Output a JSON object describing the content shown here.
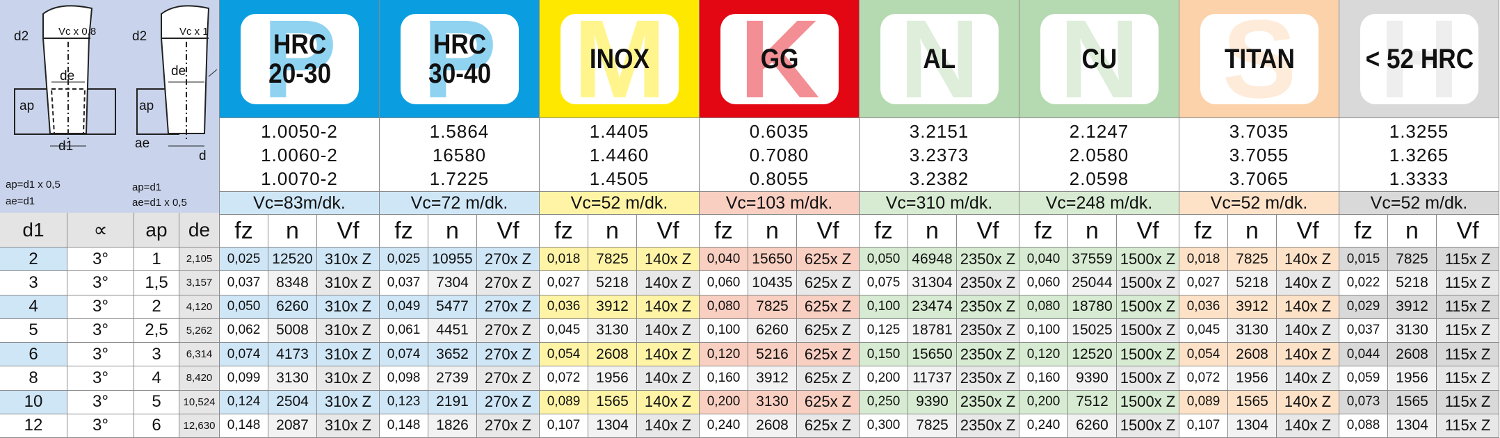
{
  "diagram_left": {
    "d2": "d2",
    "vc": "Vc x 0,8",
    "de": "de",
    "ap": "ap",
    "d1": "d1",
    "formula_ap": "ap=d1 x 0,5",
    "formula_ae": "ae=d1"
  },
  "diagram_right": {
    "d2": "d2",
    "vc": "Vc x 1",
    "de": "de",
    "ap": "ap",
    "ae": "ae",
    "d": "d",
    "formula_ap": "ap=d1",
    "formula_ae": "ae=d1 x 0,5"
  },
  "left_table": {
    "headers": [
      "d1",
      "∝",
      "ap",
      "de"
    ],
    "rows": [
      [
        "2",
        "3°",
        "1",
        "2,105"
      ],
      [
        "3",
        "3°",
        "1,5",
        "3,157"
      ],
      [
        "4",
        "3°",
        "2",
        "4,120"
      ],
      [
        "5",
        "3°",
        "2,5",
        "5,262"
      ],
      [
        "6",
        "3°",
        "3",
        "6,314"
      ],
      [
        "8",
        "3°",
        "4",
        "8,420"
      ],
      [
        "10",
        "3°",
        "5",
        "10,524"
      ],
      [
        "12",
        "3°",
        "6",
        "12,630"
      ]
    ]
  },
  "columns": [
    "fz",
    "n",
    "Vf"
  ],
  "materials": [
    {
      "letter": "P",
      "label": [
        "HRC",
        "20-30"
      ],
      "color": "#0a9ee0",
      "tint": "#cfe6f7",
      "numbers": [
        "1.0050-2",
        "1.0060-2",
        "1.0070-2"
      ],
      "vc": "Vc=83m/dk.",
      "vf": "310x Z",
      "fz": [
        "0,025",
        "0,037",
        "0,050",
        "0,062",
        "0,074",
        "0,099",
        "0,124",
        "0,148"
      ],
      "n": [
        "12520",
        "8348",
        "6260",
        "5008",
        "4173",
        "3130",
        "2504",
        "2087"
      ]
    },
    {
      "letter": "P",
      "label": [
        "HRC",
        "30-40"
      ],
      "color": "#0a9ee0",
      "tint": "#cfe6f7",
      "numbers": [
        "1.5864",
        "16580",
        "1.7225"
      ],
      "vc": "Vc=72 m/dk.",
      "vf": "270x Z",
      "fz": [
        "0,025",
        "0,037",
        "0,049",
        "0,061",
        "0,074",
        "0,098",
        "0,123",
        "0,148"
      ],
      "n": [
        "10955",
        "7304",
        "5477",
        "4451",
        "3652",
        "2739",
        "2191",
        "1826"
      ]
    },
    {
      "letter": "M",
      "label": [
        "INOX"
      ],
      "color": "#ffe800",
      "tint": "#fff4a6",
      "numbers": [
        "1.4405",
        "1.4460",
        "1.4505"
      ],
      "vc": "Vc=52 m/dk.",
      "vf": "140x Z",
      "fz": [
        "0,018",
        "0,027",
        "0,036",
        "0,045",
        "0,054",
        "0,072",
        "0,089",
        "0,107"
      ],
      "n": [
        "7825",
        "5218",
        "3912",
        "3130",
        "2608",
        "1956",
        "1565",
        "1304"
      ]
    },
    {
      "letter": "K",
      "label": [
        "GG"
      ],
      "color": "#e30613",
      "tint": "#f9cfc2",
      "numbers": [
        "0.6035",
        "0.7080",
        "0.8055"
      ],
      "vc": "Vc=103 m/dk.",
      "vf": "625x Z",
      "fz": [
        "0,040",
        "0,060",
        "0,080",
        "0,100",
        "0,120",
        "0,160",
        "0,200",
        "0,240"
      ],
      "n": [
        "15650",
        "10435",
        "7825",
        "6260",
        "5216",
        "3912",
        "3130",
        "2608"
      ]
    },
    {
      "letter": "N",
      "label": [
        "AL"
      ],
      "color": "#b5d9b0",
      "tint": "#d7ebd2",
      "numbers": [
        "3.2151",
        "3.2373",
        "3.2382"
      ],
      "vc": "Vc=310 m/dk.",
      "vf": "2350x Z",
      "fz": [
        "0,050",
        "0,075",
        "0,100",
        "0,125",
        "0,150",
        "0,200",
        "0,250",
        "0,300"
      ],
      "n": [
        "46948",
        "31304",
        "23474",
        "18781",
        "15650",
        "11737",
        "9390",
        "7825"
      ]
    },
    {
      "letter": "N",
      "label": [
        "CU"
      ],
      "color": "#b5d9b0",
      "tint": "#d7ebd2",
      "numbers": [
        "2.1247",
        "2.0580",
        "2.0598"
      ],
      "vc": "Vc=248 m/dk.",
      "vf": "1500x Z",
      "fz": [
        "0,040",
        "0,060",
        "0,080",
        "0,100",
        "0,120",
        "0,160",
        "0,200",
        "0,240"
      ],
      "n": [
        "37559",
        "25044",
        "18780",
        "15025",
        "12520",
        "9390",
        "7512",
        "6260"
      ]
    },
    {
      "letter": "S",
      "label": [
        "TITAN"
      ],
      "color": "#fcd2ab",
      "tint": "#fde2c8",
      "numbers": [
        "3.7035",
        "3.7055",
        "3.7065"
      ],
      "vc": "Vc=52 m/dk.",
      "vf": "140x Z",
      "fz": [
        "0,018",
        "0,027",
        "0,036",
        "0,045",
        "0,054",
        "0,072",
        "0,089",
        "0,107"
      ],
      "n": [
        "7825",
        "5218",
        "3912",
        "3130",
        "2608",
        "1956",
        "1565",
        "1304"
      ]
    },
    {
      "letter": "H",
      "label": [
        "< 52 HRC"
      ],
      "color": "#d9d9d9",
      "tint": "#d9d9d9",
      "numbers": [
        "1.3255",
        "1.3265",
        "1.3333"
      ],
      "vc": "Vc=52 m/dk.",
      "vf": "115x Z",
      "fz": [
        "0,015",
        "0,022",
        "0,029",
        "0,037",
        "0,044",
        "0,059",
        "0,073",
        "0,088"
      ],
      "n": [
        "7825",
        "5218",
        "3912",
        "3130",
        "2608",
        "1956",
        "1565",
        "1304"
      ]
    }
  ]
}
